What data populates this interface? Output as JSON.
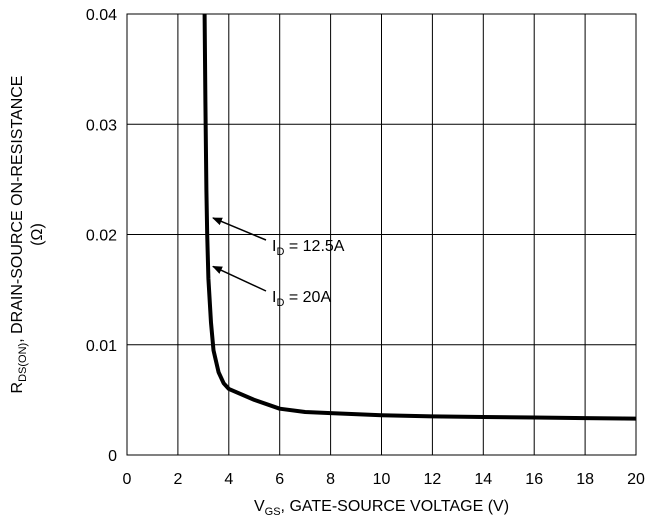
{
  "chart_data": {
    "type": "line",
    "xlabel": {
      "main": "V",
      "sub": "GS",
      "rest": ", GATE-SOURCE VOLTAGE (V)"
    },
    "ylabel": {
      "main": "R",
      "sub": "DS(ON)",
      "rest": ", DRAIN-SOURCE ON-RESISTANCE",
      "line2": "(Ω)"
    },
    "xlim": [
      0,
      20
    ],
    "ylim": [
      0,
      0.04
    ],
    "x_ticks": [
      0,
      2,
      4,
      6,
      8,
      10,
      12,
      14,
      16,
      18,
      20
    ],
    "x_tick_labels": [
      "0",
      "2",
      "4",
      "6",
      "8",
      "10",
      "12",
      "14",
      "16",
      "18",
      "20"
    ],
    "y_ticks": [
      0,
      0.01,
      0.02,
      0.03,
      0.04
    ],
    "y_tick_labels": [
      "0",
      "0.01",
      "0.02",
      "0.03",
      "0.04"
    ],
    "grid": true,
    "series": [
      {
        "x": [
          3.05,
          3.08,
          3.12,
          3.15,
          3.2,
          3.3,
          3.4,
          3.6,
          3.8,
          4.0,
          5.0,
          6.0,
          7.0,
          8.0,
          10.0,
          12.0,
          14.0,
          16.0,
          18.0,
          20.0
        ],
        "y": [
          0.04,
          0.032,
          0.024,
          0.02,
          0.016,
          0.012,
          0.0095,
          0.0075,
          0.0065,
          0.006,
          0.005,
          0.0042,
          0.0039,
          0.0038,
          0.0036,
          0.0035,
          0.00345,
          0.0034,
          0.00335,
          0.0033
        ]
      }
    ],
    "annotations": [
      {
        "main": "I",
        "sub": "D",
        "rest": " = 12.5A",
        "target_x": 3.3,
        "target_y": 0.0215
      },
      {
        "main": "I",
        "sub": "D",
        "rest": " = 20A",
        "target_x": 3.3,
        "target_y": 0.0171
      }
    ]
  }
}
